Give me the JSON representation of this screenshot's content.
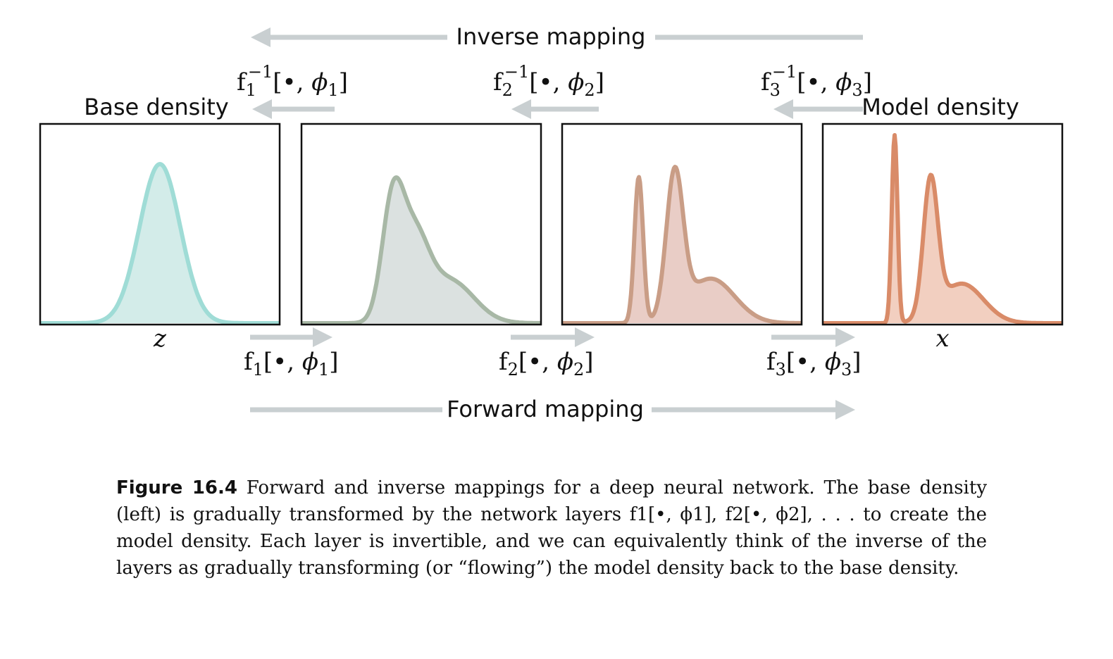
{
  "colors": {
    "arrow": "#c9cfd1",
    "panel_border": "#111111",
    "curves": [
      "#9fdcd6",
      "#a8b8a6",
      "#c99d86",
      "#d98b68"
    ],
    "fills": [
      "#d3ece9",
      "#dbe1e0",
      "#e9cdc6",
      "#f2cfc0"
    ]
  },
  "diagram": {
    "inverse_mapping_label": "Inverse mapping",
    "forward_mapping_label": "Forward mapping",
    "base_density_label": "Base density",
    "model_density_label": "Model density",
    "axis_label_left": "z",
    "axis_label_right": "x",
    "forward_layers": [
      {
        "fn": "f",
        "idx": "1",
        "param": "ϕ",
        "param_idx": "1"
      },
      {
        "fn": "f",
        "idx": "2",
        "param": "ϕ",
        "param_idx": "2"
      },
      {
        "fn": "f",
        "idx": "3",
        "param": "ϕ",
        "param_idx": "3"
      }
    ],
    "inverse_layers": [
      {
        "fn": "f",
        "idx": "1",
        "sup": "−1",
        "param": "ϕ",
        "param_idx": "1"
      },
      {
        "fn": "f",
        "idx": "2",
        "sup": "−1",
        "param": "ϕ",
        "param_idx": "2"
      },
      {
        "fn": "f",
        "idx": "3",
        "sup": "−1",
        "param": "ϕ",
        "param_idx": "3"
      }
    ],
    "bullet": "•"
  },
  "caption": {
    "figure_number": "Figure 16.4",
    "text": "Forward and inverse mappings for a deep neural network. The base density (left) is gradually transformed by the network layers f1[•, ϕ1], f2[•, ϕ2], . . . to create the model density. Each layer is invertible, and we can equivalently think of the inverse of the layers as gradually transforming (or “flowing”) the model density back to the base density."
  }
}
